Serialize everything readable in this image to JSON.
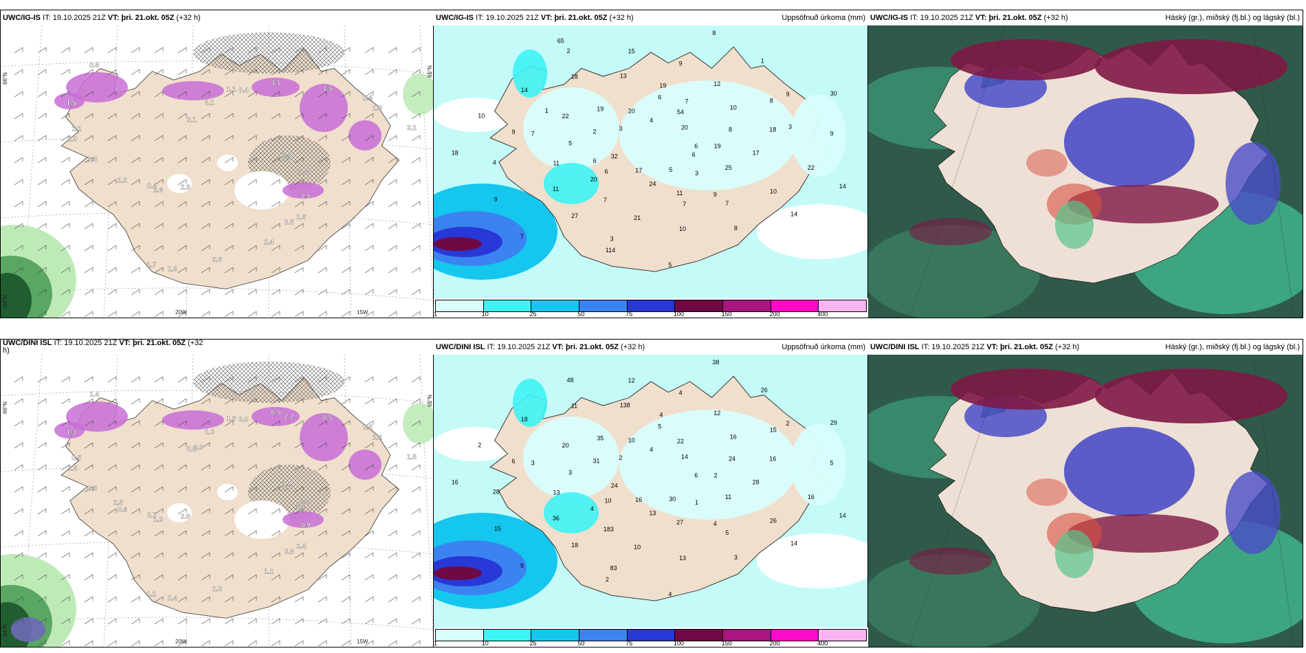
{
  "panels": [
    {
      "model": "UWC/IG-IS",
      "it_label": "IT:",
      "it_value": "19.10.2025 21Z",
      "vt_label": "VT:",
      "vt_value": "þri. 21.okt. 05Z",
      "lead": "(+32 h)",
      "field": "",
      "lon_ticks": [
        "20W",
        "15W"
      ],
      "lat_ticks": [
        "66°N",
        "65°N",
        "64°N"
      ],
      "values": [
        "0.6",
        "2.6",
        "1.1",
        "1.6",
        "2.0",
        "2.4",
        "1.3",
        "2.1",
        "1.6",
        "1.2",
        "3.1",
        "2.4",
        "1.5",
        "2.1",
        "2.3",
        "3.1",
        "2.5",
        "1.8",
        "1.5",
        "0.6",
        "0.8",
        "0.3",
        "0.4",
        "0.4",
        "0.5",
        "1.1",
        "1.9",
        "1.7"
      ]
    },
    {
      "model": "UWC/IG-IS",
      "it_label": "IT:",
      "it_value": "19.10.2025 21Z",
      "vt_label": "VT:",
      "vt_value": "þri. 21.okt. 05Z",
      "lead": "(+32 h)",
      "field": "Uppsöfnuð úrkoma (mm)",
      "values": [
        "6",
        "6",
        "6",
        "9",
        "7",
        "8",
        "3",
        "2",
        "14",
        "32",
        "54",
        "11",
        "22",
        "18",
        "27",
        "15",
        "14",
        "18",
        "20",
        "24",
        "19",
        "17",
        "11",
        "9",
        "8",
        "10",
        "30",
        "17",
        "20",
        "25",
        "11",
        "12",
        "10",
        "14",
        "9",
        "7",
        "4",
        "3",
        "5",
        "10",
        "21",
        "18",
        "22",
        "9",
        "8",
        "5",
        "2",
        "8",
        "7",
        "13",
        "10",
        "4",
        "1",
        "5",
        "3",
        "19",
        "20",
        "19",
        "7",
        "9",
        "9",
        "114",
        "65",
        "6",
        "6",
        "7",
        "7",
        "1",
        "3"
      ],
      "legend": [
        "1",
        "10",
        "25",
        "50",
        "75",
        "100",
        "150",
        "200",
        "400"
      ]
    },
    {
      "model": "UWC/IG-IS",
      "it_label": "IT:",
      "it_value": "19.10.2025 21Z",
      "vt_label": "VT:",
      "vt_value": "þri. 21.okt. 05Z",
      "lead": "(+32 h)",
      "field": "Háský (gr.), miðský (fj.bl.) og lágský (bl.)"
    },
    {
      "model": "UWC/DINI ISL",
      "it_label": "IT:",
      "it_value": "19.10.2025 21Z",
      "vt_label": "VT:",
      "vt_value": "þri. 21.okt. 05Z",
      "lead": "(+32",
      "lead2": "h)",
      "field": "",
      "lon_ticks": [
        "20W",
        "15W"
      ],
      "lat_ticks": [
        "66°N",
        "65°N",
        "64°N"
      ],
      "values": [
        "1.1",
        "1.2",
        "1.6",
        "2.4",
        "1.6",
        "2.6",
        "2.4",
        "0.6",
        "0.3",
        "0.4",
        "0.5",
        "1.1",
        "1.3",
        "1.5",
        "2.8",
        "1.0",
        "0.9",
        "0.5",
        "0.5",
        "1.0",
        "1.4",
        "0.9",
        "0.7",
        "0.9",
        "0.8",
        "0.5",
        "2.4",
        "1.1",
        "8.0",
        "3.4",
        "2.5",
        "2.2"
      ]
    },
    {
      "model": "UWC/DINI ISL",
      "it_label": "IT:",
      "it_value": "19.10.2025 21Z",
      "vt_label": "VT:",
      "vt_value": "þri. 21.okt. 05Z",
      "lead": "(+32 h)",
      "field": "Uppsöfnuð úrkoma (mm)",
      "values": [
        "6",
        "10",
        "5",
        "4",
        "3",
        "15",
        "83",
        "48",
        "14",
        "24",
        "22",
        "27",
        "20",
        "16",
        "18",
        "12",
        "14",
        "16",
        "14",
        "13",
        "35",
        "28",
        "36",
        "4",
        "3",
        "2",
        "29",
        "16",
        "10",
        "11",
        "13",
        "12",
        "13",
        "18",
        "5",
        "9",
        "4",
        "1",
        "3",
        "16",
        "10",
        "11",
        "16",
        "15",
        "38",
        "30",
        "31",
        "24",
        "183",
        "138",
        "26",
        "28",
        "26",
        "4",
        "2",
        "2",
        "4",
        "4",
        "5",
        "6",
        "2",
        "2"
      ],
      "legend": [
        "1",
        "10",
        "25",
        "50",
        "75",
        "100",
        "150",
        "200",
        "400"
      ]
    },
    {
      "model": "UWC/DINI ISL",
      "it_label": "IT:",
      "it_value": "19.10.2025 21Z",
      "vt_label": "VT:",
      "vt_value": "þri. 21.okt. 05Z",
      "lead": "(+32 h)",
      "field": "Háský (gr.), miðský (fj.bl.) og lágský (bl.)"
    }
  ],
  "colors": {
    "land": "#f0dfcc",
    "sea_precip_light": "#c4fbf9",
    "legend": [
      "#d8fefd",
      "#3ef3f4",
      "#15c6ef",
      "#3b83f0",
      "#2738d6",
      "#6e0946",
      "#a8157e",
      "#ff0ac9",
      "#f7b5f2"
    ],
    "cloud_high": "#7e1845",
    "cloud_mid": "#4a4ec7",
    "cloud_low": "#2c8a6f",
    "precip_rate": "#c86ed6"
  }
}
